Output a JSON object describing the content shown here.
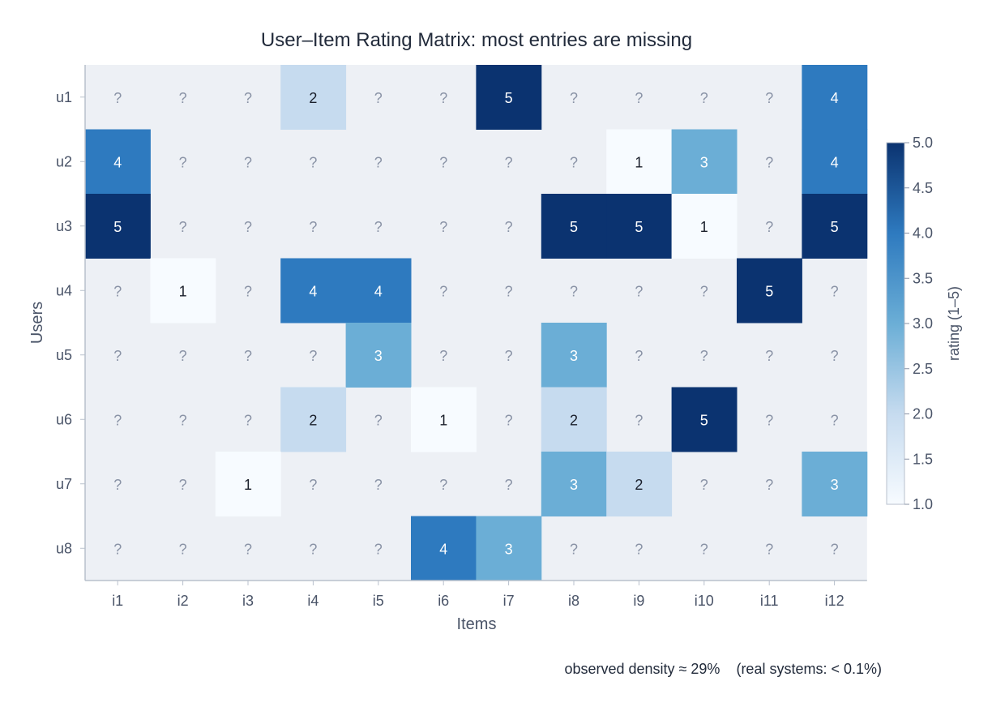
{
  "chart_data": {
    "type": "heatmap",
    "title": "User–Item Rating Matrix: most entries are missing",
    "xlabel": "Items",
    "ylabel": "Users",
    "x_categories": [
      "i1",
      "i2",
      "i3",
      "i4",
      "i5",
      "i6",
      "i7",
      "i8",
      "i9",
      "i10",
      "i11",
      "i12"
    ],
    "y_categories": [
      "u1",
      "u2",
      "u3",
      "u4",
      "u5",
      "u6",
      "u7",
      "u8"
    ],
    "missing_label": "?",
    "values": [
      [
        null,
        null,
        null,
        2,
        null,
        null,
        5,
        null,
        null,
        null,
        null,
        4
      ],
      [
        4,
        null,
        null,
        null,
        null,
        null,
        null,
        null,
        1,
        3,
        null,
        4
      ],
      [
        5,
        null,
        null,
        null,
        null,
        null,
        null,
        5,
        5,
        1,
        null,
        5
      ],
      [
        null,
        1,
        null,
        4,
        4,
        null,
        null,
        null,
        null,
        null,
        5,
        null
      ],
      [
        null,
        null,
        null,
        null,
        3,
        null,
        null,
        3,
        null,
        null,
        null,
        null
      ],
      [
        null,
        null,
        null,
        2,
        null,
        1,
        null,
        2,
        null,
        5,
        null,
        null
      ],
      [
        null,
        null,
        1,
        null,
        null,
        null,
        null,
        3,
        2,
        null,
        null,
        3
      ],
      [
        null,
        null,
        null,
        null,
        null,
        4,
        3,
        null,
        null,
        null,
        null,
        null
      ]
    ],
    "colorbar": {
      "label": "rating (1–5)",
      "range": [
        1.0,
        5.0
      ],
      "ticks": [
        "1.0",
        "1.5",
        "2.0",
        "2.5",
        "3.0",
        "3.5",
        "4.0",
        "4.5",
        "5.0"
      ],
      "colormap": "Blues"
    },
    "colors": {
      "missing_fill": "#edf0f5",
      "missing_text": "#8a93a6",
      "scale": [
        "#f7fbff",
        "#c6dbef",
        "#6baed6",
        "#2e7abf",
        "#0b3370"
      ]
    },
    "footnote": "observed density ≈ 29%    (real systems: < 0.1%)"
  }
}
